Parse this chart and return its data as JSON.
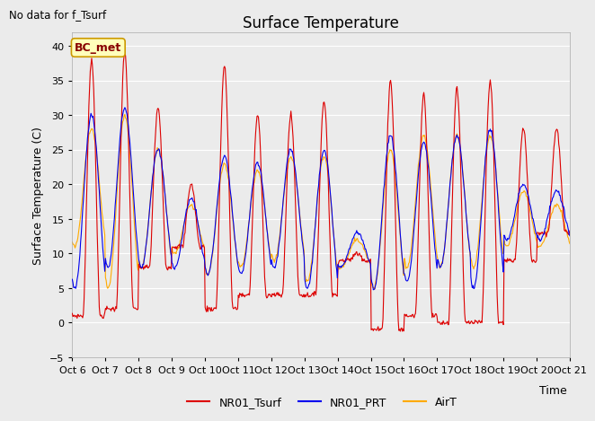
{
  "title": "Surface Temperature",
  "ylabel": "Surface Temperature (C)",
  "xlabel": "Time",
  "watermark_text": "No data for f_Tsurf",
  "box_label": "BC_met",
  "ylim": [
    -5,
    42
  ],
  "yticks": [
    -5,
    0,
    5,
    10,
    15,
    20,
    25,
    30,
    35,
    40
  ],
  "xtick_labels": [
    "Oct 6",
    "Oct 7",
    "Oct 8",
    "Oct 9",
    "Oct 10",
    "Oct 11",
    "Oct 12",
    "Oct 13",
    "Oct 14",
    "Oct 15",
    "Oct 16",
    "Oct 17",
    "Oct 18",
    "Oct 19",
    "Oct 20",
    "Oct 21"
  ],
  "line_colors": {
    "NR01_Tsurf": "#dd0000",
    "NR01_PRT": "#0000ee",
    "AirT": "#ffaa00"
  },
  "line_widths": {
    "NR01_Tsurf": 0.8,
    "NR01_PRT": 0.8,
    "AirT": 0.8
  },
  "plot_bg_color": "#ebebeb",
  "fig_bg_color": "#ebebeb",
  "grid_color": "#ffffff",
  "title_fontsize": 12,
  "axis_fontsize": 9,
  "tick_fontsize": 8,
  "legend_fontsize": 9,
  "tsurf_peaks": [
    38,
    39,
    31,
    20,
    37,
    30,
    30,
    32,
    10,
    35,
    33,
    34,
    35,
    28,
    28
  ],
  "tsurf_troughs": [
    1,
    2,
    8,
    11,
    2,
    4,
    4,
    4,
    9,
    -1,
    1,
    0,
    0,
    9,
    13
  ],
  "prt_peaks": [
    30,
    31,
    25,
    18,
    24,
    23,
    25,
    25,
    13,
    27,
    26,
    27,
    28,
    20,
    19
  ],
  "prt_troughs": [
    5,
    8,
    8,
    8,
    7,
    7,
    8,
    5,
    8,
    5,
    6,
    8,
    5,
    12,
    12
  ],
  "airt_peaks": [
    28,
    30,
    25,
    17,
    23,
    22,
    24,
    24,
    12,
    25,
    27,
    27,
    27,
    19,
    17
  ],
  "airt_troughs": [
    11,
    5,
    8,
    10,
    7,
    8,
    9,
    6,
    8,
    5,
    8,
    8,
    8,
    11,
    11
  ]
}
